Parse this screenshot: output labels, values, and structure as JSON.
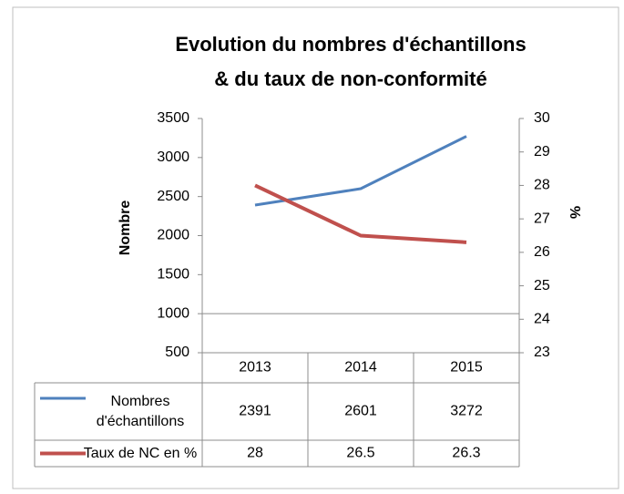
{
  "chart_data": {
    "type": "line",
    "title": [
      "Evolution du nombres d'échantillons",
      "& du taux de non-conformité"
    ],
    "categories": [
      "2013",
      "2014",
      "2015"
    ],
    "series": [
      {
        "name": "Nombres d'échantillons",
        "color": "#4f81bd",
        "values": [
          2391,
          2601,
          3272
        ]
      },
      {
        "name": "Taux de NC en %",
        "color": "#c0504d",
        "values": [
          28,
          26.5,
          26.3
        ],
        "axis": "y2"
      }
    ],
    "ylabel": "Nombre",
    "y2label": "%",
    "ylim": [
      500,
      3500
    ],
    "yticks": [
      500,
      1000,
      1500,
      2000,
      2500,
      3000,
      3500
    ],
    "y2lim": [
      23,
      30
    ],
    "y2ticks": [
      23,
      24,
      25,
      26,
      27,
      28,
      29,
      30
    ],
    "x_axis_crosses": 1000,
    "data_table": true
  }
}
